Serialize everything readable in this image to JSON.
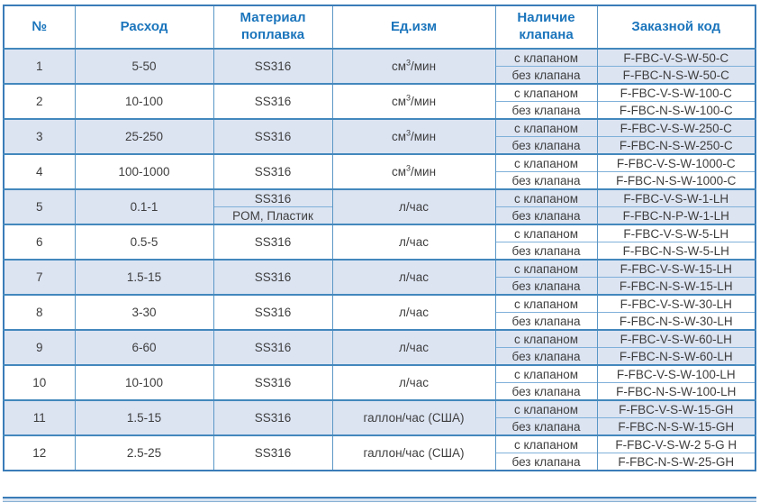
{
  "table": {
    "headers": {
      "num": "№",
      "flow": "Расход",
      "material": "Материал поплавка",
      "unit": "Ед.изм",
      "valve": "Наличие клапана",
      "code": "Заказной код"
    },
    "rows": [
      {
        "num": "1",
        "flow": "5-50",
        "materials": [
          "SS316"
        ],
        "unit": {
          "base": "см",
          "sup": "3",
          "rest": "/мин"
        },
        "sub": [
          {
            "valve": "с клапаном",
            "code": "F-FBC-V-S-W-50-C"
          },
          {
            "valve": "без клапана",
            "code": "F-FBC-N-S-W-50-C"
          }
        ]
      },
      {
        "num": "2",
        "flow": "10-100",
        "materials": [
          "SS316"
        ],
        "unit": {
          "base": "см",
          "sup": "3",
          "rest": "/мин"
        },
        "sub": [
          {
            "valve": "с клапаном",
            "code": "F-FBC-V-S-W-100-C"
          },
          {
            "valve": "без клапана",
            "code": "F-FBC-N-S-W-100-C"
          }
        ]
      },
      {
        "num": "3",
        "flow": "25-250",
        "materials": [
          "SS316"
        ],
        "unit": {
          "base": "см",
          "sup": "3",
          "rest": "/мин"
        },
        "sub": [
          {
            "valve": "с клапаном",
            "code": "F-FBC-V-S-W-250-C"
          },
          {
            "valve": "без клапана",
            "code": "F-FBC-N-S-W-250-C"
          }
        ]
      },
      {
        "num": "4",
        "flow": "100-1000",
        "materials": [
          "SS316"
        ],
        "unit": {
          "base": "см",
          "sup": "3",
          "rest": "/мин"
        },
        "sub": [
          {
            "valve": "с клапаном",
            "code": "F-FBC-V-S-W-1000-C"
          },
          {
            "valve": "без клапана",
            "code": "F-FBC-N-S-W-1000-C"
          }
        ]
      },
      {
        "num": "5",
        "flow": "0.1-1",
        "materials": [
          "SS316",
          "POM, Пластик"
        ],
        "unit": {
          "base": "л/час",
          "sup": "",
          "rest": ""
        },
        "sub": [
          {
            "valve": "с клапаном",
            "code": "F-FBC-V-S-W-1-LH"
          },
          {
            "valve": "без клапана",
            "code": "F-FBC-N-P-W-1-LH"
          }
        ]
      },
      {
        "num": "6",
        "flow": "0.5-5",
        "materials": [
          "SS316"
        ],
        "unit": {
          "base": "л/час",
          "sup": "",
          "rest": ""
        },
        "sub": [
          {
            "valve": "с клапаном",
            "code": "F-FBC-V-S-W-5-LH"
          },
          {
            "valve": "без клапана",
            "code": "F-FBC-N-S-W-5-LH"
          }
        ]
      },
      {
        "num": "7",
        "flow": "1.5-15",
        "materials": [
          "SS316"
        ],
        "unit": {
          "base": "л/час",
          "sup": "",
          "rest": ""
        },
        "sub": [
          {
            "valve": "с клапаном",
            "code": "F-FBC-V-S-W-15-LH"
          },
          {
            "valve": "без клапана",
            "code": "F-FBC-N-S-W-15-LH"
          }
        ]
      },
      {
        "num": "8",
        "flow": "3-30",
        "materials": [
          "SS316"
        ],
        "unit": {
          "base": "л/час",
          "sup": "",
          "rest": ""
        },
        "sub": [
          {
            "valve": "с клапаном",
            "code": "F-FBC-V-S-W-30-LH"
          },
          {
            "valve": "без клапана",
            "code": "F-FBC-N-S-W-30-LH"
          }
        ]
      },
      {
        "num": "9",
        "flow": "6-60",
        "materials": [
          "SS316"
        ],
        "unit": {
          "base": "л/час",
          "sup": "",
          "rest": ""
        },
        "sub": [
          {
            "valve": "с клапаном",
            "code": "F-FBC-V-S-W-60-LH"
          },
          {
            "valve": "без клапана",
            "code": "F-FBC-N-S-W-60-LH"
          }
        ]
      },
      {
        "num": "10",
        "flow": "10-100",
        "materials": [
          "SS316"
        ],
        "unit": {
          "base": "л/час",
          "sup": "",
          "rest": ""
        },
        "sub": [
          {
            "valve": "с клапаном",
            "code": "F-FBC-V-S-W-100-LH"
          },
          {
            "valve": "без клапана",
            "code": "F-FBC-N-S-W-100-LH"
          }
        ]
      },
      {
        "num": "11",
        "flow": "1.5-15",
        "materials": [
          "SS316"
        ],
        "unit": {
          "base": "галлон/час (США)",
          "sup": "",
          "rest": ""
        },
        "sub": [
          {
            "valve": "с клапаном",
            "code": "F-FBC-V-S-W-15-GH"
          },
          {
            "valve": "без клапана",
            "code": "F-FBC-N-S-W-15-GH"
          }
        ]
      },
      {
        "num": "12",
        "flow": "2.5-25",
        "materials": [
          "SS316"
        ],
        "unit": {
          "base": "галлон/час (США)",
          "sup": "",
          "rest": ""
        },
        "sub": [
          {
            "valve": "с клапаном",
            "code": "F-FBC-V-S-W-2 5-G H"
          },
          {
            "valve": "без клапана",
            "code": "F-FBC-N-S-W-25-GH"
          }
        ]
      }
    ]
  }
}
